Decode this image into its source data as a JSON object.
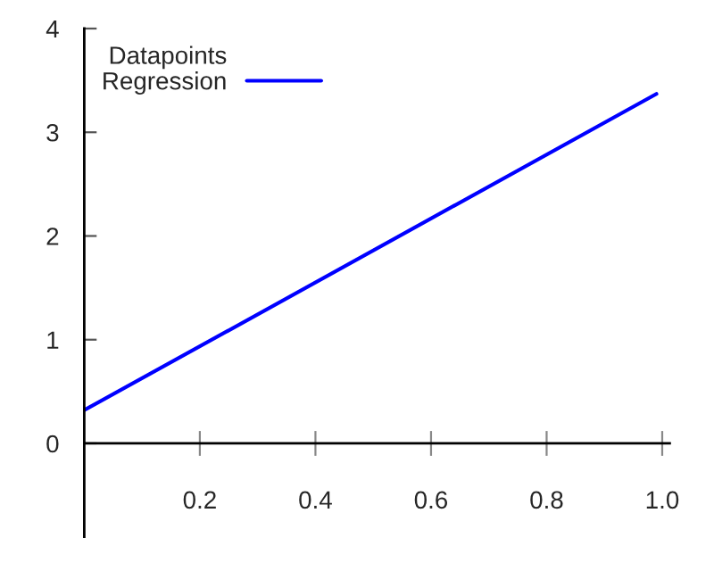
{
  "chart_data": {
    "type": "line",
    "series": [
      {
        "name": "Datapoints",
        "type": "scatter",
        "color": "#000000",
        "marker": "none"
      },
      {
        "name": "Regression",
        "color": "#0000ff",
        "x": [
          0,
          0.99
        ],
        "values": [
          0.32,
          3.37
        ]
      }
    ],
    "xlim": [
      0,
      1.013
    ],
    "xticks": [
      0.2,
      0.4,
      0.6,
      0.8,
      {
        "value": 1.0,
        "label": "1.0"
      }
    ],
    "ylim": [
      -0.9,
      4
    ],
    "yticks": [
      0,
      1,
      2,
      3,
      4
    ],
    "grid": false,
    "legend": "top left"
  }
}
